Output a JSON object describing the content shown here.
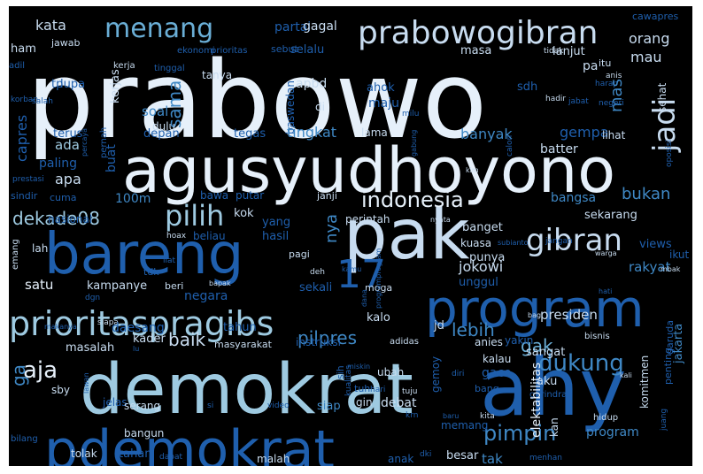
{
  "palette": {
    "background": "#000000",
    "c1": "#e6f0fa",
    "c2": "#c8dcf0",
    "c3": "#9ecae1",
    "c4": "#6aaed6",
    "c5": "#3f88c5",
    "c6": "#1f5fad",
    "c7": "#0b3f85",
    "c8": "#08306b"
  },
  "words": [
    {
      "text": "prabowo",
      "size": 120,
      "color": "c1"
    },
    {
      "text": "agusyudhoyono",
      "size": 70,
      "color": "c1"
    },
    {
      "text": "pak",
      "size": 78,
      "color": "c2"
    },
    {
      "text": "bareng",
      "size": 64,
      "color": "c6"
    },
    {
      "text": "demokrat",
      "size": 78,
      "color": "c3"
    },
    {
      "text": "ahy",
      "size": 90,
      "color": "c6"
    },
    {
      "text": "pdemokrat",
      "size": 60,
      "color": "c6"
    },
    {
      "text": "program",
      "size": 58,
      "color": "c6"
    },
    {
      "text": "17",
      "size": 44,
      "color": "c6"
    },
    {
      "text": "prioritaspragibs",
      "size": 38,
      "color": "c3"
    },
    {
      "text": "prabowogibran",
      "size": 36,
      "color": "c2"
    },
    {
      "text": "menang",
      "size": 30,
      "color": "c4"
    },
    {
      "text": "jadi",
      "size": 34,
      "color": "c2"
    },
    {
      "text": "pilih",
      "size": 32,
      "color": "c3"
    },
    {
      "text": "gibran",
      "size": 34,
      "color": "c2"
    },
    {
      "text": "indonesia",
      "size": 24,
      "color": "c1"
    },
    {
      "text": "dekade08",
      "size": 20,
      "color": "c3"
    },
    {
      "text": "dukung",
      "size": 26,
      "color": "c5"
    },
    {
      "text": "pimpin",
      "size": 24,
      "color": "c5"
    },
    {
      "text": "aja",
      "size": 26,
      "color": "c1"
    },
    {
      "text": "baik",
      "size": 20,
      "color": "c2"
    },
    {
      "text": "pilpres",
      "size": 20,
      "color": "c5"
    },
    {
      "text": "lebih",
      "size": 20,
      "color": "c5"
    },
    {
      "text": "gak",
      "size": 20,
      "color": "c4"
    },
    {
      "text": "kata",
      "size": 16,
      "color": "c2"
    },
    {
      "text": "partai",
      "size": 14,
      "color": "c6"
    },
    {
      "text": "gagal",
      "size": 14,
      "color": "c2"
    },
    {
      "text": "orang",
      "size": 16,
      "color": "c2"
    },
    {
      "text": "mau",
      "size": 16,
      "color": "c2"
    },
    {
      "text": "cawapres",
      "size": 11,
      "color": "c6"
    },
    {
      "text": "ham",
      "size": 13,
      "color": "c2"
    },
    {
      "text": "jawab",
      "size": 11,
      "color": "c2"
    },
    {
      "text": "ekonomi",
      "size": 10,
      "color": "c6"
    },
    {
      "text": "prioritas",
      "size": 10,
      "color": "c6"
    },
    {
      "text": "sebut",
      "size": 11,
      "color": "c6"
    },
    {
      "text": "selalu",
      "size": 13,
      "color": "c6"
    },
    {
      "text": "masa",
      "size": 13,
      "color": "c2"
    },
    {
      "text": "tidak",
      "size": 9,
      "color": "c2"
    },
    {
      "text": "lanjut",
      "size": 13,
      "color": "c2"
    },
    {
      "text": "adil",
      "size": 10,
      "color": "c6"
    },
    {
      "text": "kerja",
      "size": 10,
      "color": "c2"
    },
    {
      "text": "tinggal",
      "size": 10,
      "color": "c6"
    },
    {
      "text": "tanya",
      "size": 12,
      "color": "c2"
    },
    {
      "text": "pa",
      "size": 14,
      "color": "c2"
    },
    {
      "text": "itu",
      "size": 11,
      "color": "c2"
    },
    {
      "text": "anis",
      "size": 9,
      "color": "c2"
    },
    {
      "text": "harap",
      "size": 9,
      "color": "c6"
    },
    {
      "text": "capres",
      "size": 16,
      "color": "c6"
    },
    {
      "text": "tp",
      "size": 13,
      "color": "c6"
    },
    {
      "text": "lupa",
      "size": 13,
      "color": "c6"
    },
    {
      "text": "korban",
      "size": 9,
      "color": "c6"
    },
    {
      "text": "salah",
      "size": 9,
      "color": "c6"
    },
    {
      "text": "apbd",
      "size": 14,
      "color": "c2"
    },
    {
      "text": "ahok",
      "size": 13,
      "color": "c6"
    },
    {
      "text": "sdh",
      "size": 13,
      "color": "c6"
    },
    {
      "text": "mas",
      "size": 18,
      "color": "c5"
    },
    {
      "text": "sehat",
      "size": 12,
      "color": "c2"
    },
    {
      "text": "maju",
      "size": 14,
      "color": "c6"
    },
    {
      "text": "di",
      "size": 12,
      "color": "c2"
    },
    {
      "text": "hadir",
      "size": 9,
      "color": "c2"
    },
    {
      "text": "jabat",
      "size": 9,
      "color": "c6"
    },
    {
      "text": "negeri",
      "size": 9,
      "color": "c6"
    },
    {
      "text": "kerjas",
      "size": 13,
      "color": "c2"
    },
    {
      "text": "soal",
      "size": 15,
      "color": "c5"
    },
    {
      "text": "sama",
      "size": 20,
      "color": "c5"
    },
    {
      "text": "dulu",
      "size": 12,
      "color": "c2"
    },
    {
      "text": "baswedan",
      "size": 12,
      "color": "c6"
    },
    {
      "text": "milu",
      "size": 9,
      "color": "c6"
    },
    {
      "text": "terus",
      "size": 13,
      "color": "c6"
    },
    {
      "text": "depan",
      "size": 13,
      "color": "c6"
    },
    {
      "text": "tegas",
      "size": 13,
      "color": "c6"
    },
    {
      "text": "tingkat",
      "size": 16,
      "color": "c5"
    },
    {
      "text": "lama",
      "size": 12,
      "color": "c2"
    },
    {
      "text": "banyak",
      "size": 16,
      "color": "c5"
    },
    {
      "text": "gempa",
      "size": 16,
      "color": "c6"
    },
    {
      "text": "lihat",
      "size": 12,
      "color": "c2"
    },
    {
      "text": "oposisi",
      "size": 9,
      "color": "c6"
    },
    {
      "text": "calon",
      "size": 9,
      "color": "c6"
    },
    {
      "text": "ada",
      "size": 15,
      "color": "c3"
    },
    {
      "text": "pernah",
      "size": 10,
      "color": "c6"
    },
    {
      "text": "percaya",
      "size": 8,
      "color": "c6"
    },
    {
      "text": "buat",
      "size": 14,
      "color": "c6"
    },
    {
      "text": "gabung",
      "size": 8,
      "color": "c6"
    },
    {
      "text": "kim",
      "size": 8,
      "color": "c2"
    },
    {
      "text": "batter",
      "size": 14,
      "color": "c2"
    },
    {
      "text": "paling",
      "size": 14,
      "color": "c6"
    },
    {
      "text": "prestasi",
      "size": 9,
      "color": "c6"
    },
    {
      "text": "apa",
      "size": 16,
      "color": "c2"
    },
    {
      "text": "100m",
      "size": 14,
      "color": "c5"
    },
    {
      "text": "sindir",
      "size": 11,
      "color": "c6"
    },
    {
      "text": "cuma",
      "size": 11,
      "color": "c6"
    },
    {
      "text": "bawa",
      "size": 12,
      "color": "c6"
    },
    {
      "text": "putar",
      "size": 12,
      "color": "c6"
    },
    {
      "text": "janji",
      "size": 11,
      "color": "c2"
    },
    {
      "text": "bukan",
      "size": 18,
      "color": "c5"
    },
    {
      "text": "bangsa",
      "size": 14,
      "color": "c5"
    },
    {
      "text": "kok",
      "size": 13,
      "color": "c2"
    },
    {
      "text": "perintah",
      "size": 12,
      "color": "c2"
    },
    {
      "text": "sekarang",
      "size": 13,
      "color": "c2"
    },
    {
      "text": "nasional",
      "size": 12,
      "color": "c6"
    },
    {
      "text": "yang",
      "size": 13,
      "color": "c6"
    },
    {
      "text": "nya",
      "size": 18,
      "color": "c5"
    },
    {
      "text": "banget",
      "size": 13,
      "color": "c2"
    },
    {
      "text": "nyata",
      "size": 8,
      "color": "c2"
    },
    {
      "text": "emang",
      "size": 10,
      "color": "c2"
    },
    {
      "text": "lah",
      "size": 12,
      "color": "c2"
    },
    {
      "text": "hoax",
      "size": 9,
      "color": "c2"
    },
    {
      "text": "beliau",
      "size": 12,
      "color": "c6"
    },
    {
      "text": "hasil",
      "size": 13,
      "color": "c6"
    },
    {
      "text": "kuasa",
      "size": 12,
      "color": "c2"
    },
    {
      "text": "subianto",
      "size": 8,
      "color": "c6"
    },
    {
      "text": "jangan",
      "size": 9,
      "color": "c6"
    },
    {
      "text": "views",
      "size": 13,
      "color": "c6"
    },
    {
      "text": "warga",
      "size": 8,
      "color": "c2"
    },
    {
      "text": "punya",
      "size": 13,
      "color": "c2"
    },
    {
      "text": "pagi",
      "size": 11,
      "color": "c2"
    },
    {
      "text": "ikut",
      "size": 12,
      "color": "c6"
    },
    {
      "text": "liat",
      "size": 9,
      "color": "c6"
    },
    {
      "text": "tdk",
      "size": 11,
      "color": "c6"
    },
    {
      "text": "jokowi",
      "size": 16,
      "color": "c2"
    },
    {
      "text": "rakyat",
      "size": 15,
      "color": "c5"
    },
    {
      "text": "unggul",
      "size": 13,
      "color": "c6"
    },
    {
      "text": "deh",
      "size": 9,
      "color": "c2"
    },
    {
      "text": "kamu",
      "size": 8,
      "color": "c6"
    },
    {
      "text": "mbak",
      "size": 8,
      "color": "c2"
    },
    {
      "text": "satu",
      "size": 15,
      "color": "c1"
    },
    {
      "text": "kampanye",
      "size": 13,
      "color": "c2"
    },
    {
      "text": "beri",
      "size": 11,
      "color": "c2"
    },
    {
      "text": "bapak",
      "size": 8,
      "color": "c2"
    },
    {
      "text": "sekali",
      "size": 13,
      "color": "c6"
    },
    {
      "text": "moga",
      "size": 11,
      "color": "c2"
    },
    {
      "text": "dgn",
      "size": 9,
      "color": "c6"
    },
    {
      "text": "negara",
      "size": 14,
      "color": "c6"
    },
    {
      "text": "hati",
      "size": 8,
      "color": "c6"
    },
    {
      "text": "dana",
      "size": 8,
      "color": "c6"
    },
    {
      "text": "programprogram",
      "size": 8,
      "color": "c6"
    },
    {
      "text": "kalo",
      "size": 13,
      "color": "c2"
    },
    {
      "text": "bagi",
      "size": 8,
      "color": "c2"
    },
    {
      "text": "presiden",
      "size": 15,
      "color": "c2"
    },
    {
      "text": "makanya",
      "size": 8,
      "color": "c6"
    },
    {
      "text": "siapa",
      "size": 9,
      "color": "c2"
    },
    {
      "text": "daesang",
      "size": 14,
      "color": "c6"
    },
    {
      "text": "tahun",
      "size": 13,
      "color": "c6"
    },
    {
      "text": "jd",
      "size": 13,
      "color": "c2"
    },
    {
      "text": "bisnis",
      "size": 10,
      "color": "c2"
    },
    {
      "text": "kader",
      "size": 13,
      "color": "c2"
    },
    {
      "text": "masyarakat",
      "size": 11,
      "color": "c2"
    },
    {
      "text": "instruksi",
      "size": 12,
      "color": "c6"
    },
    {
      "text": "adidas",
      "size": 10,
      "color": "c2"
    },
    {
      "text": "yakin",
      "size": 12,
      "color": "c6"
    },
    {
      "text": "anies",
      "size": 12,
      "color": "c2"
    },
    {
      "text": "garuda",
      "size": 11,
      "color": "c6"
    },
    {
      "text": "lu",
      "size": 8,
      "color": "c6"
    },
    {
      "text": "sangat",
      "size": 13,
      "color": "c2"
    },
    {
      "text": "masalah",
      "size": 13,
      "color": "c2"
    },
    {
      "text": "kalau",
      "size": 12,
      "color": "c2"
    },
    {
      "text": "gaco",
      "size": 14,
      "color": "c6"
    },
    {
      "text": "penting",
      "size": 11,
      "color": "c6"
    },
    {
      "text": "jakarta",
      "size": 13,
      "color": "c5"
    },
    {
      "text": "ga",
      "size": 20,
      "color": "c5"
    },
    {
      "text": "lawan",
      "size": 8,
      "color": "c6"
    },
    {
      "text": "sby",
      "size": 12,
      "color": "c2"
    },
    {
      "text": "miskin",
      "size": 8,
      "color": "c6"
    },
    {
      "text": "diri",
      "size": 9,
      "color": "c6"
    },
    {
      "text": "ubah",
      "size": 12,
      "color": "c2"
    },
    {
      "text": "sih",
      "size": 11,
      "color": "c6"
    },
    {
      "text": "tuju",
      "size": 9,
      "color": "c2"
    },
    {
      "text": "tuh",
      "size": 11,
      "color": "c6"
    },
    {
      "text": "kualitas",
      "size": 9,
      "color": "c6"
    },
    {
      "text": "aku",
      "size": 13,
      "color": "c2"
    },
    {
      "text": "hari",
      "size": 9,
      "color": "c6"
    },
    {
      "text": "bang",
      "size": 11,
      "color": "c6"
    },
    {
      "text": "gerindra",
      "size": 10,
      "color": "c6"
    },
    {
      "text": "gemoy",
      "size": 12,
      "color": "c6"
    },
    {
      "text": "kali",
      "size": 8,
      "color": "c2"
    },
    {
      "text": "komitmen",
      "size": 12,
      "color": "c2"
    },
    {
      "text": "juang",
      "size": 9,
      "color": "c6"
    },
    {
      "text": "jelas",
      "size": 12,
      "color": "c6"
    },
    {
      "text": "serang",
      "size": 12,
      "color": "c2"
    },
    {
      "text": "si",
      "size": 9,
      "color": "c6"
    },
    {
      "text": "video",
      "size": 9,
      "color": "c6"
    },
    {
      "text": "siap",
      "size": 13,
      "color": "c5"
    },
    {
      "text": "gin",
      "size": 12,
      "color": "c2"
    },
    {
      "text": "debat",
      "size": 14,
      "color": "c2"
    },
    {
      "text": "krn",
      "size": 9,
      "color": "c6"
    },
    {
      "text": "baru",
      "size": 8,
      "color": "c6"
    },
    {
      "text": "kita",
      "size": 9,
      "color": "c2"
    },
    {
      "text": "hidup",
      "size": 10,
      "color": "c2"
    },
    {
      "text": "kan",
      "size": 12,
      "color": "c2"
    },
    {
      "text": "bilang",
      "size": 10,
      "color": "c6"
    },
    {
      "text": "bangun",
      "size": 12,
      "color": "c2"
    },
    {
      "text": "memang",
      "size": 12,
      "color": "c6"
    },
    {
      "text": "program",
      "size": 14,
      "color": "c5"
    },
    {
      "text": "elektabilitas",
      "size": 14,
      "color": "c1"
    },
    {
      "text": "tolak",
      "size": 12,
      "color": "c2"
    },
    {
      "text": "tahan",
      "size": 13,
      "color": "c6"
    },
    {
      "text": "dapat",
      "size": 9,
      "color": "c6"
    },
    {
      "text": "malah",
      "size": 12,
      "color": "c2"
    },
    {
      "text": "dki",
      "size": 9,
      "color": "c6"
    },
    {
      "text": "anak",
      "size": 12,
      "color": "c6"
    },
    {
      "text": "besar",
      "size": 13,
      "color": "c2"
    },
    {
      "text": "tak",
      "size": 15,
      "color": "c5"
    },
    {
      "text": "menhan",
      "size": 9,
      "color": "c6"
    }
  ]
}
